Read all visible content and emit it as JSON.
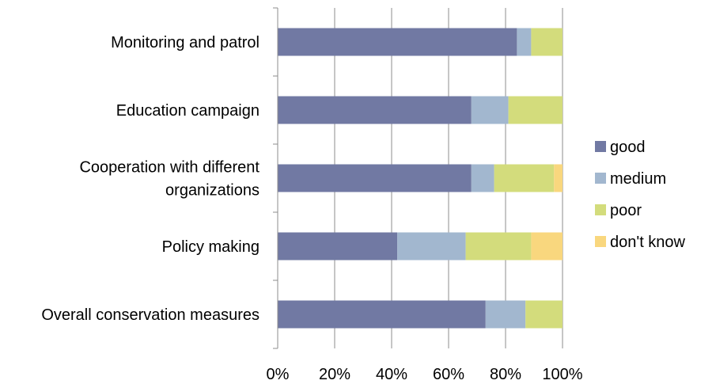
{
  "chart_data": {
    "type": "bar",
    "orientation": "horizontal",
    "stacked": "percent",
    "title": "",
    "xlabel": "",
    "ylabel": "",
    "categories": [
      [
        "Monitoring and patrol"
      ],
      [
        "Education campaign"
      ],
      [
        "Cooperation with different",
        "organizations"
      ],
      [
        "Policy making"
      ],
      [
        "Overall conservation measures"
      ]
    ],
    "series": [
      {
        "name": "good",
        "color": "#7179a3",
        "values": [
          84,
          68,
          68,
          42,
          73
        ]
      },
      {
        "name": "medium",
        "color": "#a2b7cf",
        "values": [
          5,
          13,
          8,
          24,
          14
        ]
      },
      {
        "name": "poor",
        "color": "#d3dc7c",
        "values": [
          11,
          19,
          21,
          23,
          13
        ]
      },
      {
        "name": "don't know",
        "color": "#f9d77e",
        "values": [
          0,
          0,
          3,
          11,
          0
        ]
      }
    ],
    "xlim": [
      0,
      100
    ],
    "x_ticks": [
      "0%",
      "20%",
      "40%",
      "60%",
      "80%",
      "100%"
    ],
    "grid": "vertical",
    "legend": "right"
  }
}
